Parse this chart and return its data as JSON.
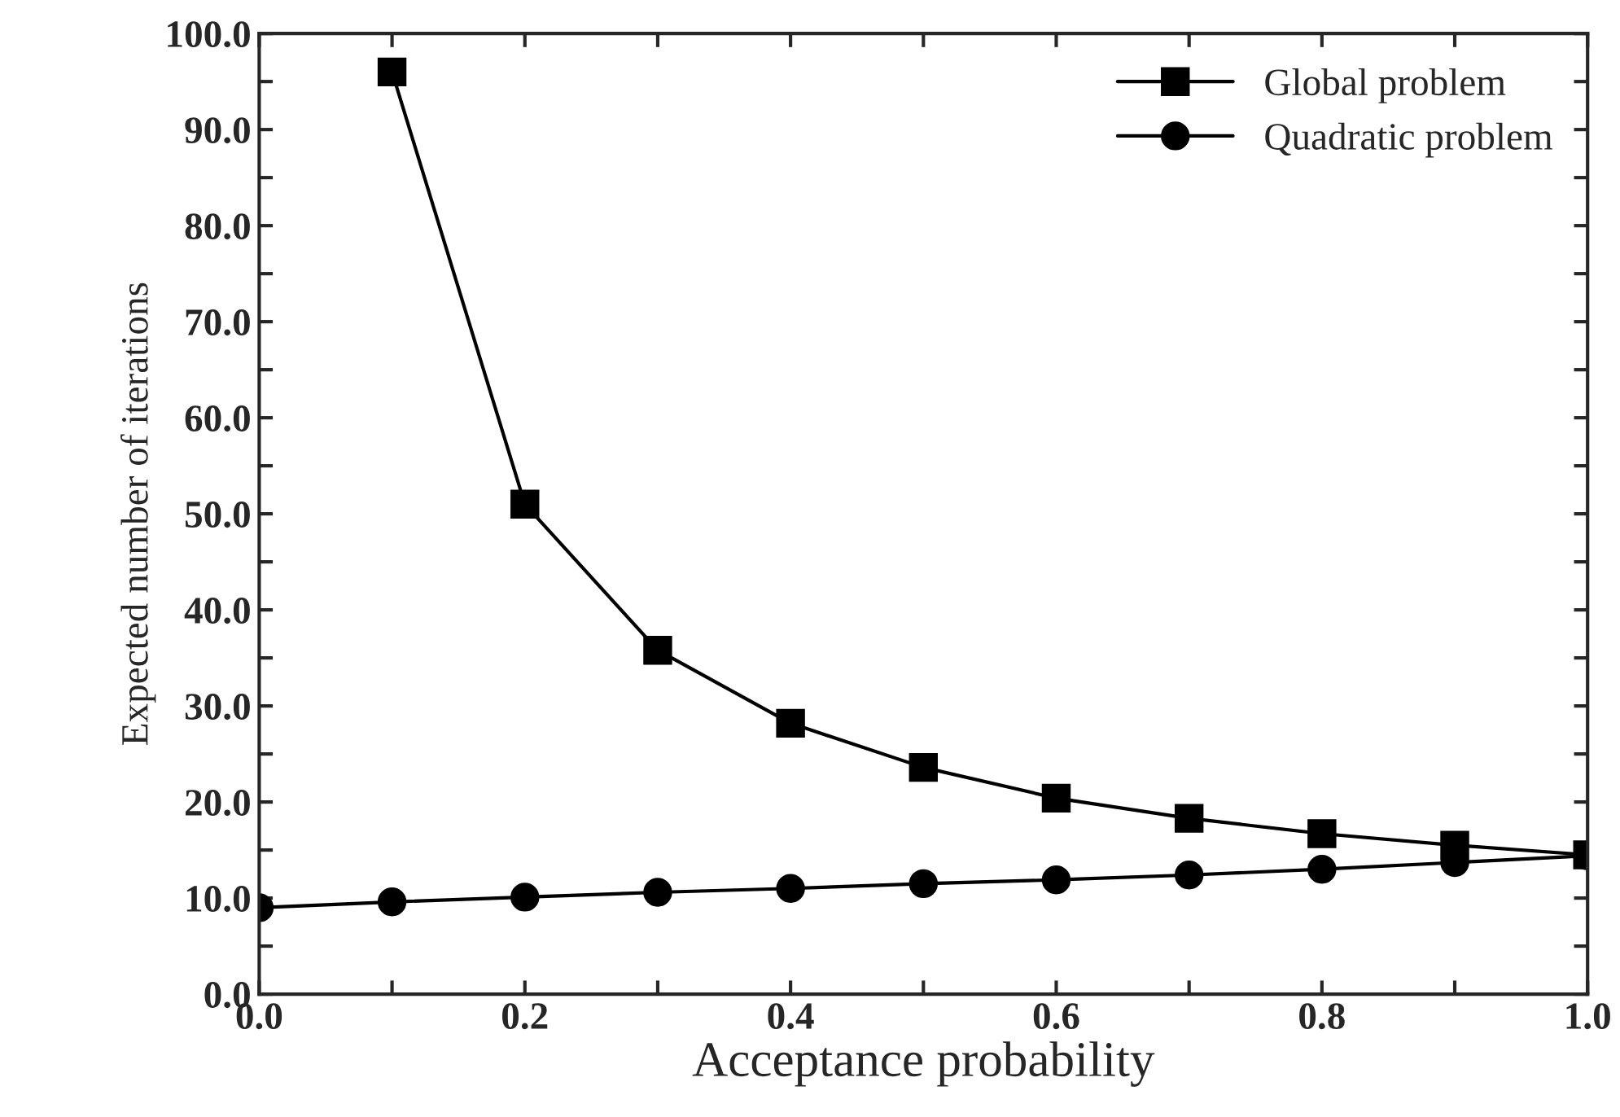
{
  "chart_data": {
    "type": "line",
    "xlabel": "Acceptance probability",
    "ylabel": "Expected number of iterations",
    "xlim": [
      0,
      1
    ],
    "ylim": [
      0,
      100
    ],
    "xticks": [
      {
        "value": 0,
        "label": "0.0"
      },
      {
        "value": 0.1,
        "label": null
      },
      {
        "value": 0.2,
        "label": "0.2"
      },
      {
        "value": 0.3,
        "label": null
      },
      {
        "value": 0.4,
        "label": "0.4"
      },
      {
        "value": 0.5,
        "label": null
      },
      {
        "value": 0.6,
        "label": "0.6"
      },
      {
        "value": 0.7,
        "label": null
      },
      {
        "value": 0.8,
        "label": "0.8"
      },
      {
        "value": 0.9,
        "label": null
      },
      {
        "value": 1,
        "label": "1.0"
      }
    ],
    "yticks": [
      {
        "value": 0,
        "label": "0.0"
      },
      {
        "value": 5,
        "label": null
      },
      {
        "value": 10,
        "label": "10.0"
      },
      {
        "value": 15,
        "label": null
      },
      {
        "value": 20,
        "label": "20.0"
      },
      {
        "value": 25,
        "label": null
      },
      {
        "value": 30,
        "label": "30.0"
      },
      {
        "value": 35,
        "label": null
      },
      {
        "value": 40,
        "label": "40.0"
      },
      {
        "value": 45,
        "label": null
      },
      {
        "value": 50,
        "label": "50.0"
      },
      {
        "value": 55,
        "label": null
      },
      {
        "value": 60,
        "label": "60.0"
      },
      {
        "value": 65,
        "label": null
      },
      {
        "value": 70,
        "label": "70.0"
      },
      {
        "value": 75,
        "label": null
      },
      {
        "value": 80,
        "label": "80.0"
      },
      {
        "value": 85,
        "label": null
      },
      {
        "value": 90,
        "label": "90.0"
      },
      {
        "value": 95,
        "label": null
      },
      {
        "value": 100,
        "label": "100.0"
      }
    ],
    "legend": "top right",
    "grid": false,
    "line_style": "solid",
    "series": [
      {
        "name": "Global problem",
        "color": "#000000",
        "marker": "square",
        "x": [
          0.1,
          0.2,
          0.3,
          0.4,
          0.5,
          0.6,
          0.7,
          0.8,
          0.9,
          1.0
        ],
        "values": [
          96,
          51,
          35.8,
          28.2,
          23.6,
          20.4,
          18.3,
          16.7,
          15.5,
          14.5
        ]
      },
      {
        "name": "Quadratic problem",
        "color": "#000000",
        "marker": "circle",
        "x": [
          0.0,
          0.1,
          0.2,
          0.3,
          0.4,
          0.5,
          0.6,
          0.7,
          0.8,
          0.9,
          1.0
        ],
        "values": [
          9.0,
          9.6,
          10.1,
          10.6,
          11.0,
          11.5,
          11.9,
          12.4,
          13.0,
          13.7,
          14.4
        ]
      }
    ]
  }
}
